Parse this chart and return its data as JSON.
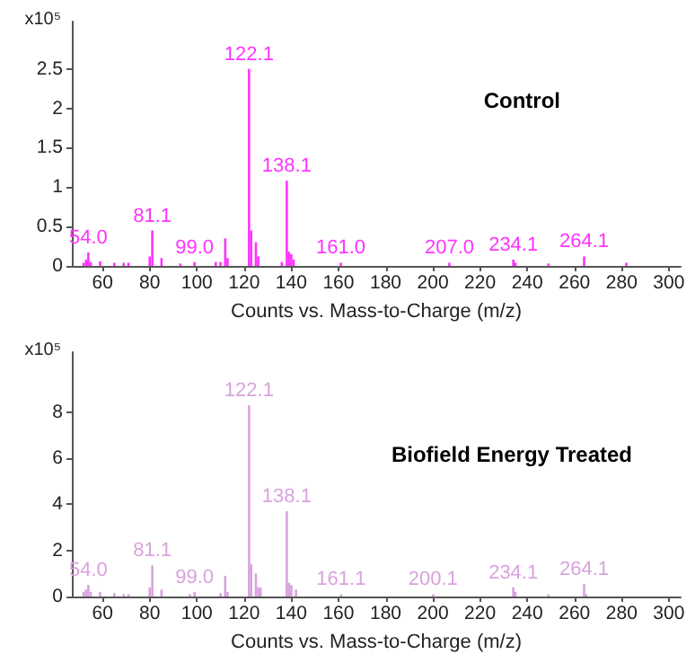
{
  "chart_data": [
    {
      "type": "bar",
      "title": "Control",
      "xlabel": "Counts vs. Mass-to-Charge (m/z)",
      "ylabel": "x10⁵",
      "x": [
        52,
        53,
        54.0,
        55,
        59,
        65,
        69,
        71,
        80,
        81.1,
        85,
        93,
        99.0,
        108,
        110,
        112,
        113,
        122.1,
        123,
        125,
        126,
        136,
        138.1,
        139,
        140,
        141,
        161.0,
        207.0,
        234.1,
        235,
        249,
        264.1,
        282
      ],
      "values": [
        0.04,
        0.08,
        0.17,
        0.05,
        0.06,
        0.04,
        0.04,
        0.04,
        0.12,
        0.45,
        0.1,
        0.03,
        0.05,
        0.05,
        0.05,
        0.35,
        0.1,
        2.5,
        0.45,
        0.3,
        0.12,
        0.05,
        1.08,
        0.18,
        0.15,
        0.08,
        0.04,
        0.04,
        0.08,
        0.04,
        0.03,
        0.12,
        0.04
      ],
      "annotations": [
        {
          "text": "54.0",
          "x": 54.0,
          "y": 0.17
        },
        {
          "text": "81.1",
          "x": 81.1,
          "y": 0.45
        },
        {
          "text": "99.0",
          "x": 99.0,
          "y": 0.05
        },
        {
          "text": "122.1",
          "x": 122.1,
          "y": 2.5
        },
        {
          "text": "138.1",
          "x": 138.1,
          "y": 1.08
        },
        {
          "text": "161.0",
          "x": 161.0,
          "y": 0.04
        },
        {
          "text": "207.0",
          "x": 207.0,
          "y": 0.04
        },
        {
          "text": "234.1",
          "x": 234.1,
          "y": 0.08
        },
        {
          "text": "264.1",
          "x": 264.1,
          "y": 0.12
        }
      ],
      "color": "#ff33ff",
      "xlim": [
        47,
        305
      ],
      "xticks": [
        60,
        80,
        100,
        120,
        140,
        160,
        180,
        200,
        220,
        240,
        260,
        280,
        300
      ],
      "ylim": [
        0,
        3.1
      ],
      "yticks": [
        0,
        0.5,
        1,
        1.5,
        2,
        2.5
      ],
      "grid": false
    },
    {
      "type": "bar",
      "title": "Biofield Energy Treated",
      "xlabel": "Counts vs. Mass-to-Charge (m/z)",
      "ylabel": "x10⁵",
      "x": [
        52,
        53,
        54.0,
        55,
        59,
        65,
        69,
        71,
        80,
        81.1,
        85,
        97,
        99.0,
        110,
        112,
        113,
        122.1,
        123,
        125,
        126,
        127,
        138.1,
        139,
        140,
        142,
        161.1,
        200.1,
        234.1,
        235,
        249,
        264.1,
        265
      ],
      "values": [
        0.2,
        0.3,
        0.5,
        0.2,
        0.2,
        0.15,
        0.1,
        0.1,
        0.4,
        1.35,
        0.3,
        0.1,
        0.2,
        0.15,
        0.9,
        0.2,
        8.3,
        1.4,
        1.0,
        0.4,
        0.4,
        3.7,
        0.6,
        0.5,
        0.3,
        0.1,
        0.1,
        0.4,
        0.2,
        0.1,
        0.55,
        0.1
      ],
      "annotations": [
        {
          "text": "54.0",
          "x": 54.0,
          "y": 0.5
        },
        {
          "text": "81.1",
          "x": 81.1,
          "y": 1.35
        },
        {
          "text": "99.0",
          "x": 99.0,
          "y": 0.2
        },
        {
          "text": "122.1",
          "x": 122.1,
          "y": 8.3
        },
        {
          "text": "138.1",
          "x": 138.1,
          "y": 3.7
        },
        {
          "text": "161.1",
          "x": 161.1,
          "y": 0.1
        },
        {
          "text": "200.1",
          "x": 200.1,
          "y": 0.1
        },
        {
          "text": "234.1",
          "x": 234.1,
          "y": 0.4
        },
        {
          "text": "264.1",
          "x": 264.1,
          "y": 0.55
        }
      ],
      "color": "#d9a3dd",
      "xlim": [
        47,
        305
      ],
      "xticks": [
        60,
        80,
        100,
        120,
        140,
        160,
        180,
        200,
        220,
        240,
        260,
        280,
        300
      ],
      "ylim": [
        0,
        10.6
      ],
      "yticks": [
        0,
        2,
        4,
        6,
        8
      ],
      "grid": false
    }
  ]
}
